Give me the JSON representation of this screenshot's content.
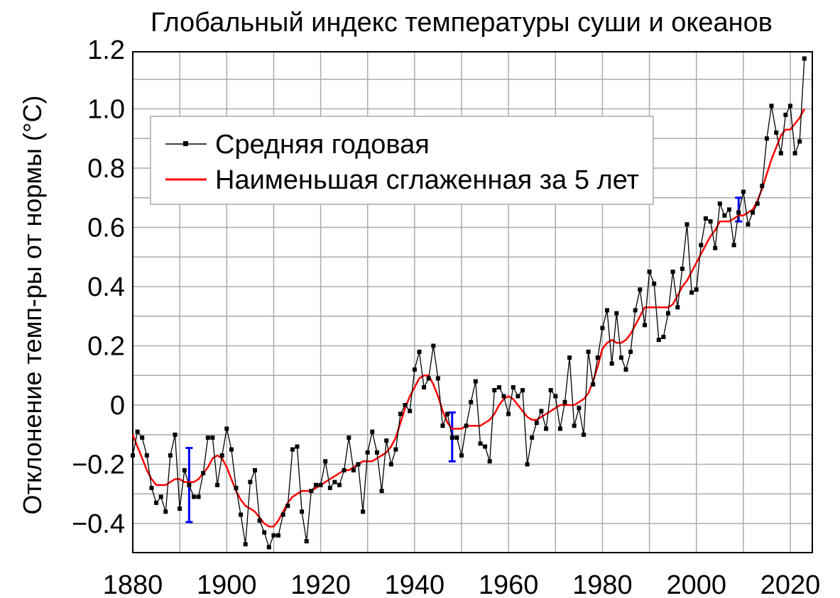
{
  "chart_data": {
    "type": "line",
    "title": "Глобальный индекс температуры суши и океанов",
    "xlabel": "",
    "ylabel": "Отклонение темп-ры от нормы (°C)",
    "xlim": [
      1880,
      2024
    ],
    "ylim": [
      -0.5,
      1.2
    ],
    "x_ticks": [
      1880,
      1900,
      1920,
      1940,
      1960,
      1980,
      2000,
      2020
    ],
    "y_ticks": [
      -0.4,
      -0.2,
      0,
      0.2,
      0.4,
      0.6,
      0.8,
      1.0,
      1.2
    ],
    "y_tick_labels": [
      "−0.4",
      "−0.2",
      "0",
      "0.2",
      "0.4",
      "0.6",
      "0.8",
      "1.0",
      "1.2"
    ],
    "grid": true,
    "grid_minor_x": 10,
    "grid_minor_y": 0.1,
    "legend_position": "upper-left",
    "colors": {
      "annual": "#000000",
      "smoothed": "#ff0000",
      "error_bars": "#0000ff",
      "grid": "#aaaaaa"
    },
    "series": [
      {
        "name": "Средняя годовая",
        "x": [
          1880,
          1881,
          1882,
          1883,
          1884,
          1885,
          1886,
          1887,
          1888,
          1889,
          1890,
          1891,
          1892,
          1893,
          1894,
          1895,
          1896,
          1897,
          1898,
          1899,
          1900,
          1901,
          1902,
          1903,
          1904,
          1905,
          1906,
          1907,
          1908,
          1909,
          1910,
          1911,
          1912,
          1913,
          1914,
          1915,
          1916,
          1917,
          1918,
          1919,
          1920,
          1921,
          1922,
          1923,
          1924,
          1925,
          1926,
          1927,
          1928,
          1929,
          1930,
          1931,
          1932,
          1933,
          1934,
          1935,
          1936,
          1937,
          1938,
          1939,
          1940,
          1941,
          1942,
          1943,
          1944,
          1945,
          1946,
          1947,
          1948,
          1949,
          1950,
          1951,
          1952,
          1953,
          1954,
          1955,
          1956,
          1957,
          1958,
          1959,
          1960,
          1961,
          1962,
          1963,
          1964,
          1965,
          1966,
          1967,
          1968,
          1969,
          1970,
          1971,
          1972,
          1973,
          1974,
          1975,
          1976,
          1977,
          1978,
          1979,
          1980,
          1981,
          1982,
          1983,
          1984,
          1985,
          1986,
          1987,
          1988,
          1989,
          1990,
          1991,
          1992,
          1993,
          1994,
          1995,
          1996,
          1997,
          1998,
          1999,
          2000,
          2001,
          2002,
          2003,
          2004,
          2005,
          2006,
          2007,
          2008,
          2009,
          2010,
          2011,
          2012,
          2013,
          2014,
          2015,
          2016,
          2017,
          2018,
          2019,
          2020,
          2021,
          2022,
          2023
        ],
        "y": [
          -0.17,
          -0.09,
          -0.11,
          -0.17,
          -0.28,
          -0.33,
          -0.31,
          -0.36,
          -0.17,
          -0.1,
          -0.35,
          -0.22,
          -0.27,
          -0.31,
          -0.31,
          -0.23,
          -0.11,
          -0.11,
          -0.27,
          -0.17,
          -0.08,
          -0.15,
          -0.28,
          -0.37,
          -0.47,
          -0.26,
          -0.22,
          -0.39,
          -0.43,
          -0.48,
          -0.44,
          -0.44,
          -0.37,
          -0.34,
          -0.15,
          -0.14,
          -0.36,
          -0.46,
          -0.29,
          -0.27,
          -0.27,
          -0.19,
          -0.28,
          -0.26,
          -0.27,
          -0.22,
          -0.11,
          -0.22,
          -0.2,
          -0.36,
          -0.16,
          -0.09,
          -0.16,
          -0.29,
          -0.12,
          -0.2,
          -0.15,
          -0.03,
          0.0,
          -0.02,
          0.12,
          0.18,
          0.06,
          0.09,
          0.2,
          0.09,
          -0.07,
          -0.03,
          -0.11,
          -0.11,
          -0.17,
          -0.07,
          0.01,
          0.08,
          -0.13,
          -0.14,
          -0.19,
          0.05,
          0.06,
          0.03,
          -0.03,
          0.06,
          0.03,
          0.05,
          -0.2,
          -0.11,
          -0.06,
          -0.02,
          -0.08,
          0.05,
          0.03,
          -0.08,
          0.01,
          0.16,
          -0.07,
          -0.01,
          -0.1,
          0.18,
          0.07,
          0.16,
          0.26,
          0.32,
          0.14,
          0.31,
          0.16,
          0.12,
          0.18,
          0.32,
          0.39,
          0.27,
          0.45,
          0.41,
          0.22,
          0.23,
          0.31,
          0.45,
          0.33,
          0.46,
          0.61,
          0.38,
          0.39,
          0.54,
          0.63,
          0.62,
          0.53,
          0.68,
          0.64,
          0.66,
          0.54,
          0.65,
          0.72,
          0.61,
          0.65,
          0.68,
          0.74,
          0.9,
          1.01,
          0.92,
          0.85,
          0.98,
          1.01,
          0.85,
          0.89,
          1.17
        ]
      },
      {
        "name": "Наименьшая сглаженная за 5 лет",
        "x": [
          1880,
          1881,
          1882,
          1883,
          1884,
          1885,
          1886,
          1887,
          1888,
          1889,
          1890,
          1891,
          1892,
          1893,
          1894,
          1895,
          1896,
          1897,
          1898,
          1899,
          1900,
          1901,
          1902,
          1903,
          1904,
          1905,
          1906,
          1907,
          1908,
          1909,
          1910,
          1911,
          1912,
          1913,
          1914,
          1915,
          1916,
          1917,
          1918,
          1919,
          1920,
          1921,
          1922,
          1923,
          1924,
          1925,
          1926,
          1927,
          1928,
          1929,
          1930,
          1931,
          1932,
          1933,
          1934,
          1935,
          1936,
          1937,
          1938,
          1939,
          1940,
          1941,
          1942,
          1943,
          1944,
          1945,
          1946,
          1947,
          1948,
          1949,
          1950,
          1951,
          1952,
          1953,
          1954,
          1955,
          1956,
          1957,
          1958,
          1959,
          1960,
          1961,
          1962,
          1963,
          1964,
          1965,
          1966,
          1967,
          1968,
          1969,
          1970,
          1971,
          1972,
          1973,
          1974,
          1975,
          1976,
          1977,
          1978,
          1979,
          1980,
          1981,
          1982,
          1983,
          1984,
          1985,
          1986,
          1987,
          1988,
          1989,
          1990,
          1991,
          1992,
          1993,
          1994,
          1995,
          1996,
          1997,
          1998,
          1999,
          2000,
          2001,
          2002,
          2003,
          2004,
          2005,
          2006,
          2007,
          2008,
          2009,
          2010,
          2011,
          2012,
          2013,
          2014,
          2015,
          2016,
          2017,
          2018,
          2019,
          2020,
          2021,
          2022,
          2023
        ],
        "y": [
          -0.1,
          -0.14,
          -0.18,
          -0.22,
          -0.25,
          -0.27,
          -0.27,
          -0.27,
          -0.26,
          -0.25,
          -0.25,
          -0.26,
          -0.26,
          -0.26,
          -0.25,
          -0.23,
          -0.21,
          -0.18,
          -0.17,
          -0.18,
          -0.21,
          -0.25,
          -0.29,
          -0.32,
          -0.34,
          -0.35,
          -0.36,
          -0.38,
          -0.4,
          -0.41,
          -0.41,
          -0.39,
          -0.36,
          -0.33,
          -0.31,
          -0.3,
          -0.29,
          -0.29,
          -0.29,
          -0.28,
          -0.27,
          -0.26,
          -0.25,
          -0.24,
          -0.23,
          -0.22,
          -0.22,
          -0.21,
          -0.2,
          -0.19,
          -0.19,
          -0.19,
          -0.18,
          -0.17,
          -0.16,
          -0.14,
          -0.11,
          -0.06,
          -0.01,
          0.03,
          0.06,
          0.09,
          0.1,
          0.1,
          0.07,
          0.03,
          -0.02,
          -0.06,
          -0.08,
          -0.08,
          -0.08,
          -0.07,
          -0.07,
          -0.07,
          -0.07,
          -0.06,
          -0.05,
          -0.03,
          0.0,
          0.02,
          0.03,
          0.02,
          0.0,
          -0.02,
          -0.04,
          -0.05,
          -0.05,
          -0.04,
          -0.03,
          -0.02,
          -0.01,
          0.0,
          0.0,
          0.0,
          0.0,
          0.01,
          0.02,
          0.04,
          0.08,
          0.13,
          0.19,
          0.21,
          0.22,
          0.21,
          0.21,
          0.22,
          0.24,
          0.27,
          0.3,
          0.33,
          0.33,
          0.33,
          0.33,
          0.33,
          0.33,
          0.34,
          0.37,
          0.4,
          0.42,
          0.45,
          0.48,
          0.51,
          0.54,
          0.57,
          0.59,
          0.62,
          0.62,
          0.62,
          0.63,
          0.64,
          0.64,
          0.65,
          0.66,
          0.69,
          0.73,
          0.78,
          0.83,
          0.87,
          0.91,
          0.93,
          0.93,
          0.95,
          0.97,
          1.0
        ]
      }
    ],
    "error_bars": [
      {
        "x": 1892,
        "low": -0.395,
        "high": -0.145
      },
      {
        "x": 1948,
        "low": -0.19,
        "high": -0.025
      },
      {
        "x": 2009,
        "low": 0.62,
        "high": 0.7
      }
    ]
  }
}
